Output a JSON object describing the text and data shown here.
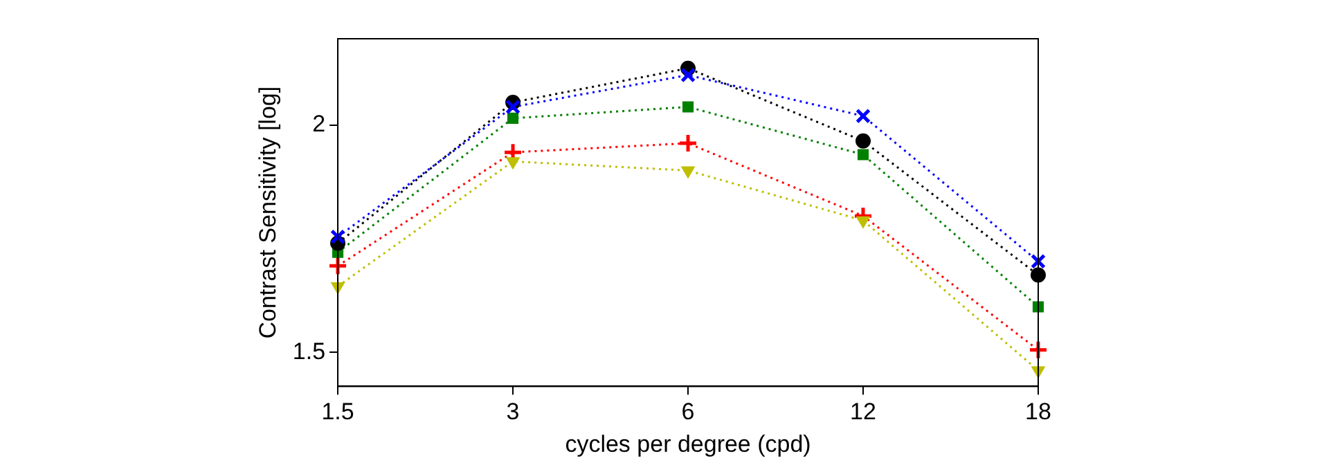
{
  "chart_data": {
    "type": "line",
    "xlabel": "cycles per degree (cpd)",
    "ylabel": "Contrast Sensitivity [log]",
    "categories": [
      "1.5",
      "3",
      "6",
      "12",
      "18"
    ],
    "series": [
      {
        "color": "#ff0000",
        "marker": "plus",
        "values": [
          1.69,
          1.94,
          1.96,
          1.8,
          1.505
        ]
      },
      {
        "color": "#bfbf00",
        "marker": "triangle",
        "values": [
          1.645,
          1.92,
          1.9,
          1.79,
          1.46
        ]
      },
      {
        "color": "#008000",
        "marker": "square",
        "values": [
          1.72,
          2.015,
          2.04,
          1.935,
          1.6
        ]
      },
      {
        "color": "#000000",
        "marker": "circle",
        "values": [
          1.74,
          2.05,
          2.125,
          1.965,
          1.67
        ]
      },
      {
        "color": "#0000ff",
        "marker": "cross",
        "values": [
          1.754,
          2.04,
          2.11,
          2.02,
          1.7
        ]
      }
    ],
    "ylim": [
      1.425,
      2.19
    ],
    "yticks": [
      1.5,
      2
    ],
    "grid": false,
    "legend": false,
    "line_style": "dotted"
  }
}
